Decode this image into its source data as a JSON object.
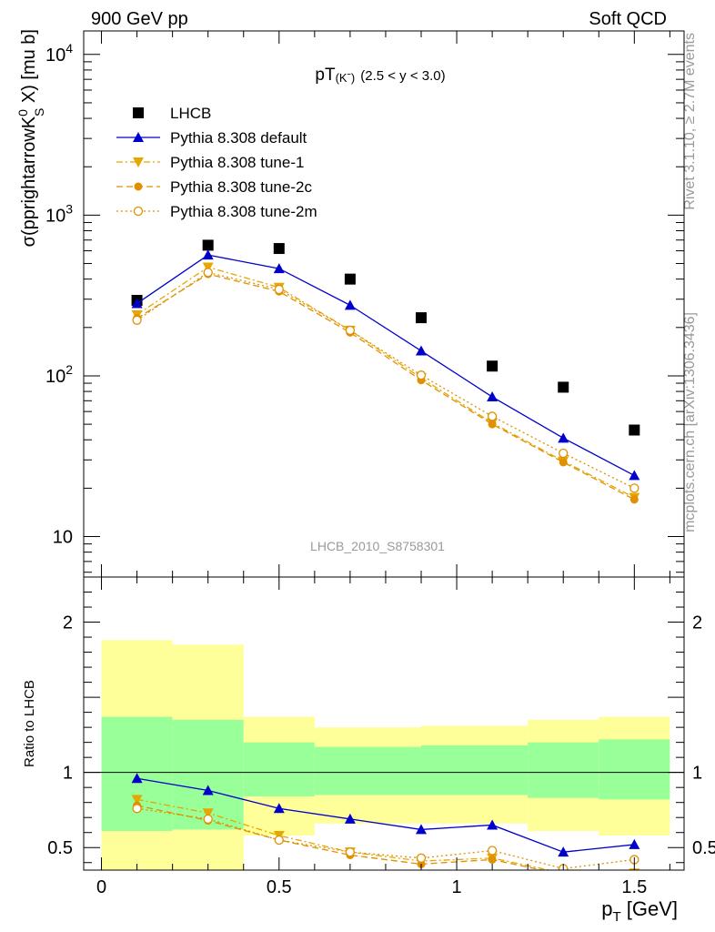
{
  "header": {
    "left": "900 GeV pp",
    "right": "Soft QCD"
  },
  "side": {
    "rivet": "Rivet 3.1.10, ≥ 2.7M events",
    "mcplots": "mcplots.cern.ch [arXiv:1306.3436]"
  },
  "chart_data": [
    {
      "type": "scatter",
      "panel": "main",
      "title": "pT(Kˉ) (2.5 < y < 3.0)",
      "title_main": "pT",
      "title_sub": "(Kˉ)",
      "title_range": "(2.5 < y < 3.0)",
      "ylabel": "σ(pprightarrowK⁰S X) [mu b]",
      "ylabel_main": "σ(pprightarrowK",
      "ylabel_sup": "0",
      "ylabel_sub": "S",
      "ylabel_tail": " X) [mu b]",
      "ylog": true,
      "xlim": [
        -0.05,
        1.64
      ],
      "ylim": [
        5.6,
        14000
      ],
      "yticks": [
        {
          "v": 10,
          "base": "10",
          "exp": ""
        },
        {
          "v": 100,
          "base": "10",
          "exp": "2"
        },
        {
          "v": 1000,
          "base": "10",
          "exp": "3"
        },
        {
          "v": 10000,
          "base": "10",
          "exp": "4"
        }
      ],
      "x": [
        0.1,
        0.3,
        0.5,
        0.7,
        0.9,
        1.1,
        1.3,
        1.5
      ],
      "series": [
        {
          "name": "LHCB",
          "color": "#000000",
          "marker": "square",
          "line": "none",
          "values": [
            295,
            650,
            620,
            400,
            230,
            115,
            85,
            46
          ]
        },
        {
          "name": "Pythia 8.308 default",
          "color": "#0000cc",
          "marker": "triangle-up",
          "line": "solid",
          "values": [
            282,
            565,
            465,
            275,
            143,
            74,
            41,
            24
          ]
        },
        {
          "name": "Pythia 8.308 tune-1",
          "color": "#e5a800",
          "marker": "triangle-down",
          "line": "dashdot",
          "values": [
            240,
            475,
            355,
            192,
            97,
            51,
            29.5,
            17.5
          ]
        },
        {
          "name": "Pythia 8.308 tune-2c",
          "color": "#e09000",
          "marker": "circle",
          "line": "dashed",
          "values": [
            228,
            430,
            335,
            186,
            94,
            50,
            29,
            17
          ]
        },
        {
          "name": "Pythia 8.308 tune-2m",
          "color": "#e09000",
          "marker": "circle-open",
          "line": "dotted",
          "values": [
            222,
            440,
            345,
            192,
            101,
            56,
            33,
            20
          ]
        }
      ],
      "legend": "top-left",
      "watermark": "LHCB_2010_S8758301"
    },
    {
      "type": "line",
      "panel": "ratio",
      "ylabel": "Ratio to LHCB",
      "xlabel": "p_T [GeV]",
      "xlabel_main": "p",
      "xlabel_sub": "T",
      "xlabel_unit": " [GeV]",
      "xlim": [
        -0.05,
        1.64
      ],
      "ylim": [
        0.35,
        2.3
      ],
      "yticks": [
        0.5,
        1,
        2
      ],
      "ytick_labels": [
        "0.5",
        "1",
        "2"
      ],
      "xticks": [
        0,
        0.5,
        1,
        1.5
      ],
      "xtick_labels": [
        "0",
        "0.5",
        "1",
        "1.5"
      ],
      "bands": [
        {
          "x0": 0.0,
          "x1": 0.2,
          "yellow": [
            0.35,
            1.88
          ],
          "green": [
            0.61,
            1.37
          ]
        },
        {
          "x0": 0.2,
          "x1": 0.4,
          "yellow": [
            0.35,
            1.85
          ],
          "green": [
            0.62,
            1.35
          ]
        },
        {
          "x0": 0.4,
          "x1": 0.6,
          "yellow": [
            0.58,
            1.37
          ],
          "green": [
            0.84,
            1.2
          ]
        },
        {
          "x0": 0.6,
          "x1": 0.9,
          "yellow": [
            0.66,
            1.3
          ],
          "green": [
            0.85,
            1.17
          ]
        },
        {
          "x0": 0.9,
          "x1": 1.2,
          "yellow": [
            0.66,
            1.31
          ],
          "green": [
            0.85,
            1.18
          ]
        },
        {
          "x0": 1.2,
          "x1": 1.4,
          "yellow": [
            0.61,
            1.35
          ],
          "green": [
            0.83,
            1.2
          ]
        },
        {
          "x0": 1.4,
          "x1": 1.6,
          "yellow": [
            0.58,
            1.37
          ],
          "green": [
            0.82,
            1.22
          ]
        }
      ],
      "x": [
        0.1,
        0.3,
        0.5,
        0.7,
        0.9,
        1.1,
        1.3,
        1.5
      ],
      "series": [
        {
          "name": "Pythia 8.308 default",
          "color": "#0000cc",
          "marker": "triangle-up",
          "line": "solid",
          "values": [
            0.96,
            0.88,
            0.76,
            0.69,
            0.62,
            0.65,
            0.47,
            0.52
          ]
        },
        {
          "name": "Pythia 8.308 tune-1",
          "color": "#e5a800",
          "marker": "triangle-down",
          "line": "dashdot",
          "values": [
            0.82,
            0.73,
            0.58,
            0.47,
            0.41,
            0.43,
            0.33,
            0.33
          ]
        },
        {
          "name": "Pythia 8.308 tune-2c",
          "color": "#e09000",
          "marker": "circle",
          "line": "dashed",
          "values": [
            0.78,
            0.68,
            0.55,
            0.45,
            0.39,
            0.42,
            0.32,
            0.32
          ]
        },
        {
          "name": "Pythia 8.308 tune-2m",
          "color": "#e09000",
          "marker": "circle-open",
          "line": "dotted",
          "values": [
            0.76,
            0.69,
            0.55,
            0.47,
            0.43,
            0.48,
            0.36,
            0.42
          ]
        }
      ]
    }
  ]
}
